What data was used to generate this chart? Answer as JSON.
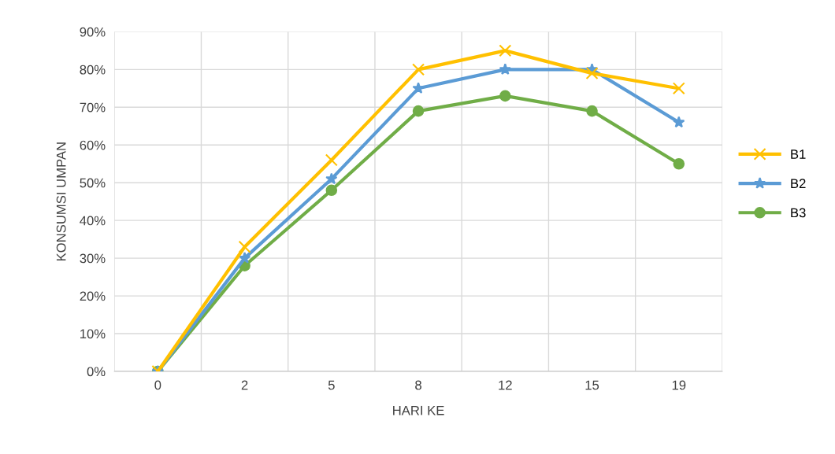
{
  "chart_data": {
    "type": "line",
    "xlabel": "HARI KE",
    "ylabel": "KONSUMSI UMPAN",
    "categories": [
      "0",
      "2",
      "5",
      "8",
      "12",
      "15",
      "19"
    ],
    "series": [
      {
        "name": "B1",
        "color": "#ffc000",
        "marker": "cross",
        "values": [
          0,
          33,
          56,
          80,
          85,
          79,
          75
        ]
      },
      {
        "name": "B2",
        "color": "#5b9bd5",
        "marker": "star",
        "values": [
          0,
          30,
          51,
          75,
          80,
          80,
          66
        ]
      },
      {
        "name": "B3",
        "color": "#70ad47",
        "marker": "circle",
        "values": [
          0,
          28,
          48,
          69,
          73,
          69,
          55
        ]
      }
    ],
    "ylim": [
      0,
      90
    ],
    "yticks": [
      {
        "value": 0,
        "label": "0%"
      },
      {
        "value": 10,
        "label": "10%"
      },
      {
        "value": 20,
        "label": "20%"
      },
      {
        "value": 30,
        "label": "30%"
      },
      {
        "value": 40,
        "label": "40%"
      },
      {
        "value": 50,
        "label": "50%"
      },
      {
        "value": 60,
        "label": "60%"
      },
      {
        "value": 70,
        "label": "70%"
      },
      {
        "value": 80,
        "label": "80%"
      },
      {
        "value": 90,
        "label": "90%"
      }
    ],
    "grid": true,
    "legend": "right",
    "line_style": "solid"
  }
}
